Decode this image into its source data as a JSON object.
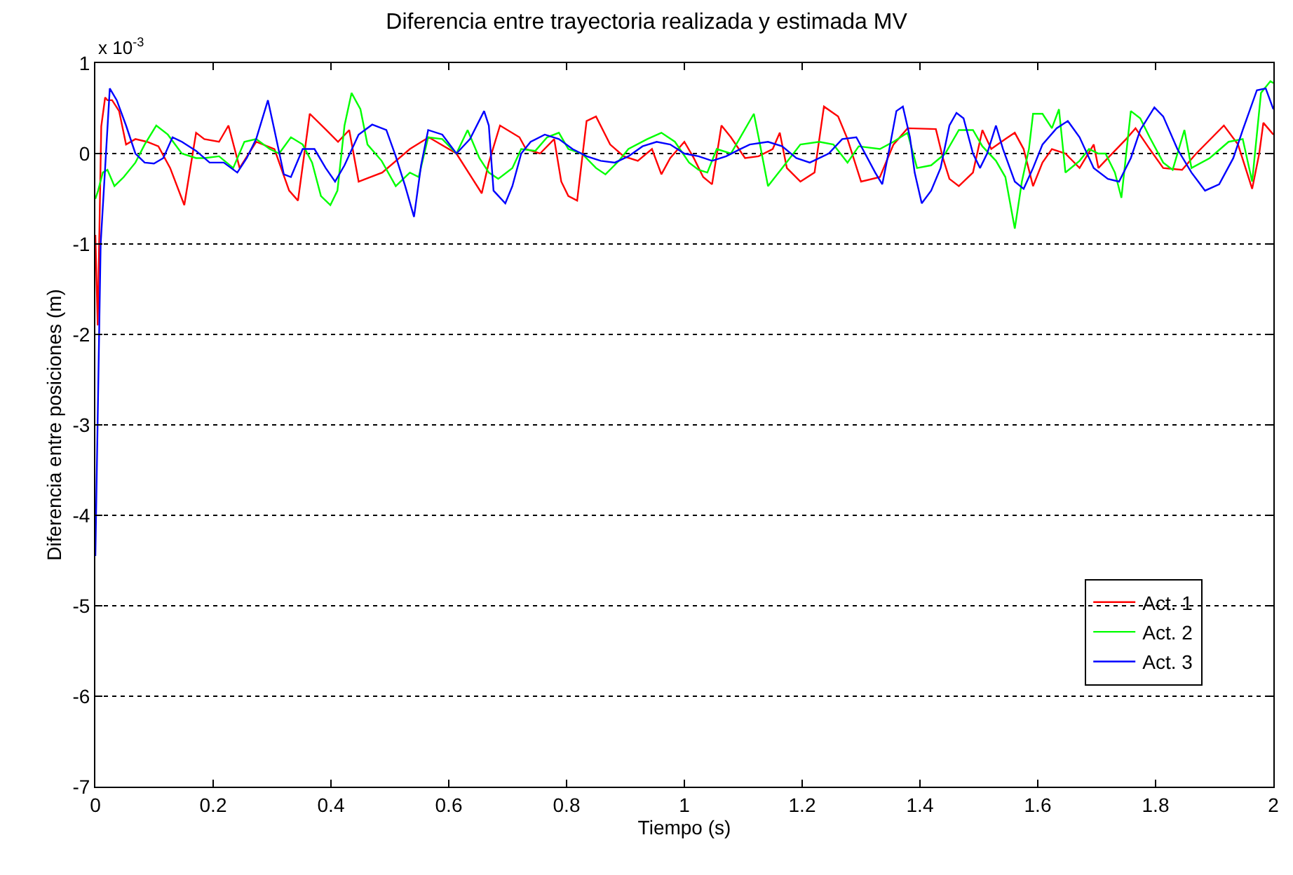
{
  "chart_data": {
    "type": "line",
    "title": "Diferencia entre trayectoria realizada y estimada MV",
    "xlabel": "Tiempo (s)",
    "ylabel": "Diferencia entre posiciones (m)",
    "annotations": [
      "x 10$^{-3}$"
    ],
    "xlim": [
      0,
      2
    ],
    "xticks": [
      0,
      0.2,
      0.4,
      0.6,
      0.8,
      1,
      1.2,
      1.4,
      1.6,
      1.8,
      2
    ],
    "ylim": [
      -7,
      1
    ],
    "yticks": [
      -7,
      -6,
      -5,
      -4,
      -3,
      -2,
      -1,
      0,
      1
    ],
    "grid": "y",
    "legend": "bottom right",
    "line_style": "solid",
    "marker": "none",
    "series": [
      {
        "name": "Act. 1",
        "color": "#ff0000",
        "x": [
          0,
          0.004,
          0.01,
          0.0166,
          0.0205,
          0.0284,
          0.0403,
          0.0521,
          0.068,
          0.0877,
          0.107,
          0.127,
          0.151,
          0.171,
          0.185,
          0.21,
          0.226,
          0.245,
          0.273,
          0.304,
          0.329,
          0.344,
          0.364,
          0.392,
          0.412,
          0.431,
          0.447,
          0.487,
          0.534,
          0.566,
          0.613,
          0.656,
          0.668,
          0.687,
          0.72,
          0.731,
          0.755,
          0.779,
          0.791,
          0.803,
          0.818,
          0.834,
          0.85,
          0.874,
          0.897,
          0.921,
          0.945,
          0.961,
          0.976,
          1.0,
          1.016,
          1.032,
          1.047,
          1.063,
          1.079,
          1.103,
          1.126,
          1.15,
          1.162,
          1.174,
          1.197,
          1.221,
          1.237,
          1.261,
          1.277,
          1.3,
          1.332,
          1.355,
          1.379,
          1.427,
          1.439,
          1.45,
          1.466,
          1.49,
          1.506,
          1.521,
          1.545,
          1.561,
          1.576,
          1.592,
          1.608,
          1.624,
          1.647,
          1.671,
          1.695,
          1.703,
          1.719,
          1.75,
          1.766,
          1.79,
          1.813,
          1.845,
          1.869,
          1.916,
          1.94,
          1.964,
          1.976,
          1.983,
          2.0
        ],
        "values": [
          -0.9,
          -1.9,
          0.3,
          0.62,
          0.59,
          0.59,
          0.47,
          0.1,
          0.16,
          0.13,
          0.08,
          -0.16,
          -0.57,
          0.23,
          0.16,
          0.13,
          0.31,
          -0.16,
          0.13,
          0.05,
          -0.41,
          -0.52,
          0.44,
          0.26,
          0.13,
          0.26,
          -0.31,
          -0.21,
          0.05,
          0.18,
          0.0,
          -0.44,
          -0.1,
          0.31,
          0.18,
          0.05,
          0.0,
          0.16,
          -0.31,
          -0.47,
          -0.52,
          0.36,
          0.41,
          0.1,
          -0.03,
          -0.08,
          0.05,
          -0.23,
          -0.05,
          0.13,
          -0.05,
          -0.26,
          -0.34,
          0.31,
          0.18,
          -0.05,
          -0.03,
          0.05,
          0.23,
          -0.16,
          -0.31,
          -0.21,
          0.52,
          0.41,
          0.16,
          -0.31,
          -0.26,
          0.1,
          0.28,
          0.27,
          -0.05,
          -0.28,
          -0.36,
          -0.21,
          0.26,
          0.05,
          0.16,
          0.23,
          0.05,
          -0.36,
          -0.1,
          0.05,
          0.0,
          -0.16,
          0.1,
          -0.16,
          -0.05,
          0.16,
          0.28,
          0.05,
          -0.16,
          -0.18,
          0.0,
          0.31,
          0.1,
          -0.39,
          0.0,
          0.34,
          0.21
        ]
      },
      {
        "name": "Act. 2",
        "color": "#00ff00",
        "x": [
          0,
          0.0047,
          0.0126,
          0.0205,
          0.0324,
          0.0482,
          0.068,
          0.0837,
          0.1034,
          0.123,
          0.1469,
          0.171,
          0.185,
          0.21,
          0.234,
          0.253,
          0.273,
          0.296,
          0.312,
          0.332,
          0.352,
          0.368,
          0.383,
          0.399,
          0.411,
          0.423,
          0.435,
          0.45,
          0.462,
          0.486,
          0.51,
          0.534,
          0.549,
          0.565,
          0.589,
          0.613,
          0.632,
          0.652,
          0.668,
          0.684,
          0.708,
          0.723,
          0.747,
          0.767,
          0.787,
          0.803,
          0.826,
          0.85,
          0.866,
          0.889,
          0.905,
          0.937,
          0.961,
          0.984,
          1.008,
          1.024,
          1.039,
          1.055,
          1.079,
          1.095,
          1.118,
          1.126,
          1.142,
          1.166,
          1.197,
          1.229,
          1.253,
          1.277,
          1.296,
          1.332,
          1.355,
          1.379,
          1.395,
          1.419,
          1.443,
          1.466,
          1.49,
          1.506,
          1.529,
          1.545,
          1.561,
          1.573,
          1.585,
          1.592,
          1.608,
          1.624,
          1.636,
          1.647,
          1.671,
          1.687,
          1.703,
          1.715,
          1.731,
          1.742,
          1.758,
          1.774,
          1.79,
          1.813,
          1.829,
          1.849,
          1.861,
          1.892,
          1.924,
          1.948,
          1.964,
          1.979,
          1.995,
          2.0
        ],
        "values": [
          -0.5,
          -0.41,
          -0.21,
          -0.18,
          -0.36,
          -0.26,
          -0.1,
          0.1,
          0.31,
          0.21,
          0.0,
          -0.05,
          -0.05,
          -0.03,
          -0.16,
          0.13,
          0.16,
          0.05,
          0.0,
          0.18,
          0.1,
          -0.1,
          -0.47,
          -0.57,
          -0.41,
          0.31,
          0.67,
          0.49,
          0.1,
          -0.08,
          -0.36,
          -0.21,
          -0.26,
          0.18,
          0.16,
          0.0,
          0.26,
          -0.05,
          -0.21,
          -0.28,
          -0.16,
          0.05,
          0.03,
          0.18,
          0.23,
          0.05,
          0.0,
          -0.16,
          -0.23,
          -0.08,
          0.05,
          0.16,
          0.23,
          0.13,
          -0.1,
          -0.18,
          -0.21,
          0.05,
          0.0,
          0.18,
          0.44,
          0.18,
          -0.36,
          -0.16,
          0.1,
          0.13,
          0.1,
          -0.1,
          0.08,
          0.05,
          0.13,
          0.23,
          -0.16,
          -0.13,
          0.0,
          0.26,
          0.26,
          0.08,
          -0.08,
          -0.26,
          -0.83,
          -0.31,
          0.05,
          0.44,
          0.44,
          0.28,
          0.49,
          -0.21,
          -0.08,
          0.05,
          0.0,
          0.0,
          -0.21,
          -0.49,
          0.47,
          0.39,
          0.18,
          -0.1,
          -0.18,
          0.26,
          -0.16,
          -0.05,
          0.13,
          0.16,
          -0.31,
          0.67,
          0.8,
          0.78
        ]
      },
      {
        "name": "Act. 3",
        "color": "#0000ff",
        "x": [
          0,
          0.009,
          0.0245,
          0.0363,
          0.0521,
          0.068,
          0.0837,
          0.0995,
          0.1153,
          0.131,
          0.1469,
          0.171,
          0.194,
          0.218,
          0.241,
          0.257,
          0.273,
          0.293,
          0.304,
          0.32,
          0.332,
          0.352,
          0.372,
          0.391,
          0.407,
          0.423,
          0.447,
          0.47,
          0.494,
          0.51,
          0.526,
          0.541,
          0.553,
          0.565,
          0.589,
          0.613,
          0.636,
          0.66,
          0.668,
          0.676,
          0.696,
          0.708,
          0.723,
          0.739,
          0.763,
          0.787,
          0.81,
          0.834,
          0.858,
          0.882,
          0.905,
          0.929,
          0.953,
          0.976,
          1.0,
          1.024,
          1.047,
          1.071,
          1.095,
          1.111,
          1.142,
          1.166,
          1.19,
          1.213,
          1.245,
          1.268,
          1.292,
          1.324,
          1.336,
          1.348,
          1.36,
          1.371,
          1.383,
          1.391,
          1.403,
          1.419,
          1.435,
          1.45,
          1.462,
          1.474,
          1.49,
          1.502,
          1.514,
          1.529,
          1.541,
          1.561,
          1.576,
          1.592,
          1.608,
          1.632,
          1.651,
          1.671,
          1.695,
          1.719,
          1.738,
          1.758,
          1.774,
          1.798,
          1.813,
          1.837,
          1.861,
          1.884,
          1.908,
          1.932,
          1.948,
          1.972,
          1.987,
          2.0
        ],
        "values": [
          -4.45,
          -1.0,
          0.72,
          0.59,
          0.31,
          0.0,
          -0.1,
          -0.11,
          -0.05,
          0.18,
          0.13,
          0.03,
          -0.1,
          -0.1,
          -0.21,
          -0.05,
          0.16,
          0.59,
          0.26,
          -0.23,
          -0.26,
          0.05,
          0.05,
          -0.16,
          -0.31,
          -0.13,
          0.21,
          0.32,
          0.26,
          -0.03,
          -0.36,
          -0.7,
          -0.13,
          0.26,
          0.21,
          0.0,
          0.16,
          0.47,
          0.31,
          -0.41,
          -0.55,
          -0.36,
          0.0,
          0.13,
          0.21,
          0.16,
          0.05,
          -0.03,
          -0.08,
          -0.1,
          -0.03,
          0.08,
          0.13,
          0.1,
          0.0,
          -0.03,
          -0.08,
          -0.03,
          0.05,
          0.1,
          0.13,
          0.08,
          -0.05,
          -0.1,
          0.0,
          0.16,
          0.18,
          -0.21,
          -0.34,
          0.05,
          0.47,
          0.52,
          0.18,
          -0.21,
          -0.55,
          -0.41,
          -0.16,
          0.31,
          0.45,
          0.39,
          0.0,
          -0.16,
          0.0,
          0.31,
          0.05,
          -0.31,
          -0.39,
          -0.16,
          0.1,
          0.28,
          0.36,
          0.18,
          -0.16,
          -0.28,
          -0.31,
          -0.05,
          0.26,
          0.51,
          0.41,
          0.05,
          -0.21,
          -0.41,
          -0.34,
          -0.05,
          0.26,
          0.7,
          0.72,
          0.49
        ]
      }
    ]
  }
}
